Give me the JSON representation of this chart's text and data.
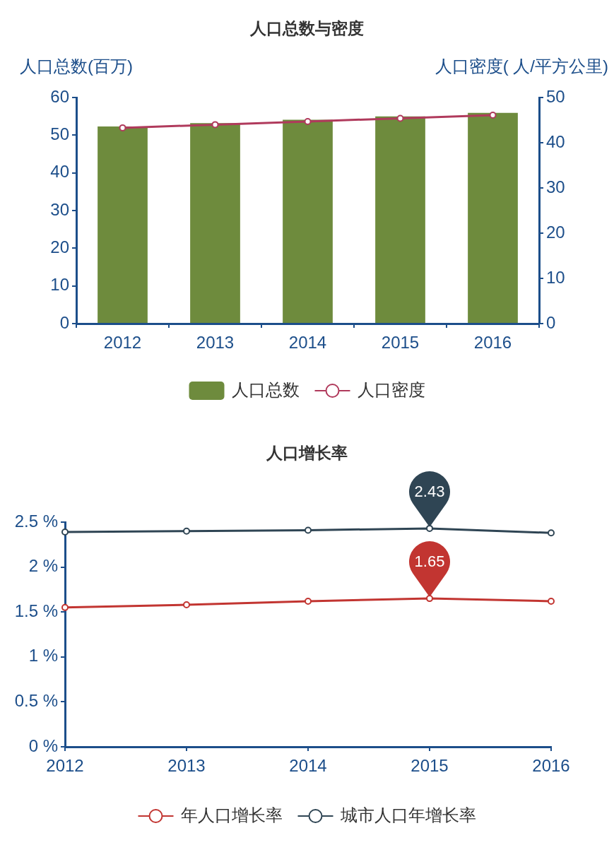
{
  "chart_data": [
    {
      "type": "bar",
      "title": "人口总数与密度",
      "ylabel": "人口总数(百万)",
      "y2label": "人口密度( 人/平方公里)",
      "categories": [
        "2012",
        "2013",
        "2014",
        "2015",
        "2016"
      ],
      "series": [
        {
          "name": "人口总数",
          "color": "#6e8b3d",
          "values": [
            52.3,
            53.2,
            54.1,
            55.0,
            55.9
          ]
        },
        {
          "name": "人口密度",
          "type": "line",
          "axis": "y2",
          "color": "#b03a5c",
          "values": [
            43.3,
            44.0,
            44.7,
            45.4,
            46.1
          ]
        }
      ],
      "ylim": [
        0,
        60
      ],
      "yticks": [
        0,
        10,
        20,
        30,
        40,
        50,
        60
      ],
      "y2lim": [
        0,
        50
      ],
      "y2ticks": [
        0,
        10,
        20,
        30,
        40,
        50
      ],
      "grid": false,
      "legend": "bottom",
      "marker": "circle"
    },
    {
      "type": "line",
      "title": "人口增长率",
      "categories": [
        "2012",
        "2013",
        "2014",
        "2015",
        "2016"
      ],
      "series": [
        {
          "name": "年人口增长率",
          "color": "#c23531",
          "values": [
            1.55,
            1.58,
            1.62,
            1.65,
            1.62
          ]
        },
        {
          "name": "城市人口年增长率",
          "color": "#2f4554",
          "values": [
            2.39,
            2.4,
            2.41,
            2.43,
            2.38
          ]
        }
      ],
      "ylim": [
        0,
        2.5
      ],
      "yticks": [
        {
          "value": 0,
          "label": "0 %"
        },
        {
          "value": 0.5,
          "label": "0.5 %"
        },
        {
          "value": 1,
          "label": "1 %"
        },
        {
          "value": 1.5,
          "label": "1.5 %"
        },
        {
          "value": 2,
          "label": "2 %"
        },
        {
          "value": 2.5,
          "label": "2.5 %"
        }
      ],
      "annotations": [
        {
          "text": "2.43",
          "x": "2015",
          "y": 2.43
        },
        {
          "text": "1.65",
          "x": "2015",
          "y": 1.65
        }
      ],
      "grid": false,
      "legend": "bottom",
      "marker": "circle"
    }
  ]
}
